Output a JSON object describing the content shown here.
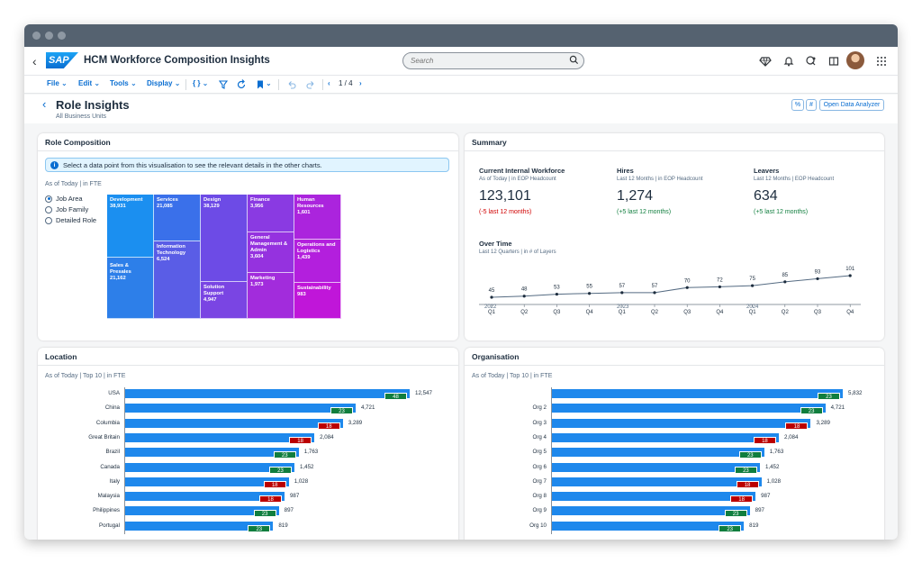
{
  "shell": {
    "logo": "SAP",
    "app_title": "HCM Workforce Composition Insights",
    "search_placeholder": "Search"
  },
  "toolbar": {
    "file": "File",
    "edit": "Edit",
    "tools": "Tools",
    "display": "Display",
    "pager": "1 / 4"
  },
  "page": {
    "title": "Role Insights",
    "subtitle": "All Business Units",
    "pct_btn": "%",
    "hash_btn": "#",
    "analyzer_btn": "Open Data Analyzer"
  },
  "role": {
    "title": "Role Composition",
    "info": "Select a data point from this visualisation to see the relevant details in the other charts.",
    "subtitle": "As of Today | in FTE",
    "options": [
      "Job Area",
      "Job Family",
      "Detailed Role"
    ],
    "treemap": [
      {
        "label": "Development",
        "value": "38,931",
        "color": "#1b8ff0"
      },
      {
        "label": "Sales & Presales",
        "value": "21,162",
        "color": "#2d7fe9"
      },
      {
        "label": "Services",
        "value": "21,085",
        "color": "#3a70ea"
      },
      {
        "label": "Information Technology",
        "value": "6,524",
        "color": "#5a5de6"
      },
      {
        "label": "Design",
        "value": "38,129",
        "color": "#6d4be6"
      },
      {
        "label": "Solution Support",
        "value": "4,947",
        "color": "#7a45e3"
      },
      {
        "label": "Finance",
        "value": "3,956",
        "color": "#8a3ae2"
      },
      {
        "label": "General Management & Admin",
        "value": "3,604",
        "color": "#9532df"
      },
      {
        "label": "Marketing",
        "value": "1,973",
        "color": "#a22cdc"
      },
      {
        "label": "Human Resources",
        "value": "1,601",
        "color": "#ab24dd"
      },
      {
        "label": "Operations and Logistics",
        "value": "1,439",
        "color": "#b31fdd"
      },
      {
        "label": "Sustainability",
        "value": "983",
        "color": "#c016d9"
      }
    ]
  },
  "summary": {
    "title": "Summary",
    "kpis": [
      {
        "title": "Current Internal Workforce",
        "sub": "As of Today | in EOP Headcount",
        "value": "123,101",
        "delta": "(-5 last 12 months)",
        "color": "#d00000"
      },
      {
        "title": "Hires",
        "sub": "Last 12 Months | in EOP Headcount",
        "value": "1,274",
        "delta": "(+5 last 12 months)",
        "color": "#107e3e"
      },
      {
        "title": "Leavers",
        "sub": "Last 12 Months | EOP Headcount",
        "value": "634",
        "delta": "(+5 last 12 months)",
        "color": "#107e3e"
      }
    ],
    "overtime_title": "Over Time",
    "overtime_sub": "Last 12 Quarters | in # of Layers",
    "years": [
      "2022",
      "2023",
      "2024"
    ]
  },
  "chart_data": [
    {
      "type": "line",
      "title": "Over Time",
      "categories": [
        "Q1",
        "Q2",
        "Q3",
        "Q4",
        "Q1",
        "Q2",
        "Q3",
        "Q4",
        "Q1",
        "Q2",
        "Q3",
        "Q4"
      ],
      "values": [
        45,
        48,
        53,
        55,
        57,
        57,
        70,
        72,
        75,
        85,
        93,
        101
      ],
      "ylim": [
        0,
        110
      ]
    },
    {
      "type": "bar",
      "title": "Location",
      "subtitle": "As of Today | Top 10 | in FTE",
      "categories": [
        "USA",
        "China",
        "Columbia",
        "Great Britain",
        "Brazil",
        "Canada",
        "Italy",
        "Malaysia",
        "Philippines",
        "Portugal"
      ],
      "values": [
        12547,
        4721,
        3289,
        2084,
        1763,
        1452,
        1028,
        987,
        897,
        819
      ],
      "labels": [
        "12,547",
        "4,721",
        "3,289",
        "2,084",
        "1,763",
        "1,452",
        "1,028",
        "987",
        "897",
        "819"
      ],
      "bar_pct": [
        100,
        81,
        76.5,
        66.5,
        61,
        59.5,
        57.5,
        56,
        54,
        52
      ],
      "badges": [
        48,
        23,
        18,
        18,
        23,
        23,
        18,
        18,
        23,
        23
      ],
      "badge_type": [
        "pos",
        "pos",
        "neg",
        "neg",
        "pos",
        "pos",
        "neg",
        "neg",
        "pos",
        "pos"
      ]
    },
    {
      "type": "bar",
      "title": "Organisation",
      "subtitle": "As of Today | Top 10 | in FTE",
      "categories": [
        "",
        "Org 2",
        "Org 3",
        "Org 4",
        "Org 5",
        "Org 6",
        "Org 7",
        "Org 8",
        "Org 9",
        "Org 10"
      ],
      "values": [
        5832,
        4721,
        3289,
        2084,
        1763,
        1452,
        1028,
        987,
        897,
        819
      ],
      "labels": [
        "5,832",
        "4,721",
        "3,289",
        "2,084",
        "1,763",
        "1,452",
        "1,028",
        "987",
        "897",
        "819"
      ],
      "bar_pct": [
        100,
        94,
        89,
        78,
        73,
        71.5,
        72,
        70,
        68,
        66
      ],
      "badges": [
        23,
        23,
        18,
        18,
        23,
        23,
        18,
        18,
        23,
        23
      ],
      "badge_type": [
        "pos",
        "pos",
        "neg",
        "neg",
        "pos",
        "pos",
        "neg",
        "neg",
        "pos",
        "pos"
      ]
    }
  ]
}
